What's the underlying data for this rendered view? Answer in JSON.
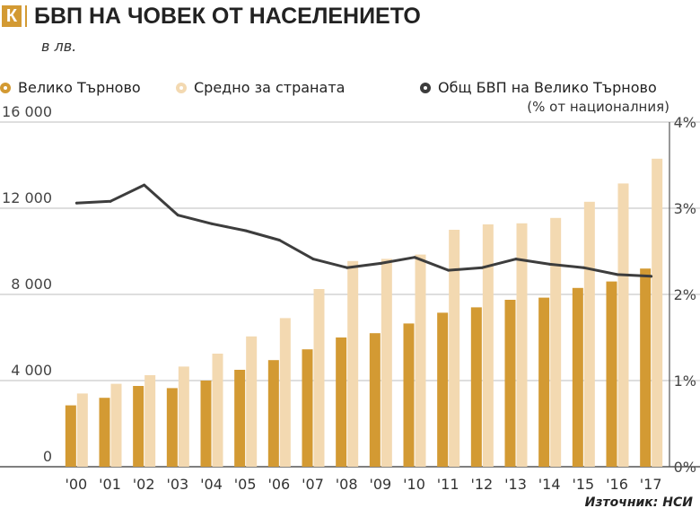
{
  "header": {
    "logo": "К",
    "title": "БВП НА ЧОВЕК ОТ НАСЕЛЕНИЕТО",
    "unit": "в лв."
  },
  "legend": {
    "vt_label": "Велико Търново",
    "avg_label": "Средно за страната",
    "line_label": "Общ БВП на Велико Търново",
    "line_sublabel": "(% от националния)"
  },
  "source": "Източник: НСИ",
  "colors": {
    "accent": "#d39a33",
    "vt_bar": "#d39a33",
    "avg_bar": "#f3d9b1",
    "line": "#3d3d3d",
    "grid": "#bdbdbd"
  },
  "chart_data": {
    "type": "bar",
    "categories": [
      "'00",
      "'01",
      "'02",
      "'03",
      "'04",
      "'05",
      "'06",
      "'07",
      "'08",
      "'09",
      "'10",
      "'11",
      "'12",
      "'13",
      "'14",
      "'15",
      "'16",
      "'17"
    ],
    "ylim": [
      0,
      16000
    ],
    "yticks": [
      0,
      4000,
      8000,
      12000,
      16000
    ],
    "ytick_labels": [
      "0",
      "4 000",
      "8 000",
      "12 000",
      "16 000"
    ],
    "y2lim": [
      0,
      4
    ],
    "y2ticks": [
      0,
      1,
      2,
      3,
      4
    ],
    "y2tick_labels": [
      "0%",
      "1%",
      "2%",
      "3%",
      "4%"
    ],
    "grid": true,
    "legend_position": "top",
    "series": [
      {
        "name": "Велико Търново",
        "type": "bar",
        "axis": "left",
        "values": [
          2850,
          3200,
          3750,
          3650,
          4000,
          4500,
          4950,
          5450,
          6000,
          6200,
          6650,
          7150,
          7400,
          7750,
          7850,
          8300,
          8600,
          9200
        ]
      },
      {
        "name": "Средно за страната",
        "type": "bar",
        "axis": "left",
        "values": [
          3400,
          3850,
          4250,
          4650,
          5250,
          6050,
          6900,
          8250,
          9550,
          9650,
          9850,
          11000,
          11250,
          11300,
          11550,
          12300,
          13150,
          14300
        ]
      },
      {
        "name": "Общ БВП на Велико Търново",
        "type": "line",
        "axis": "right",
        "values": [
          3.06,
          3.08,
          3.27,
          2.92,
          2.82,
          2.74,
          2.63,
          2.41,
          2.31,
          2.36,
          2.43,
          2.28,
          2.31,
          2.41,
          2.35,
          2.31,
          2.23,
          2.21
        ]
      }
    ]
  }
}
